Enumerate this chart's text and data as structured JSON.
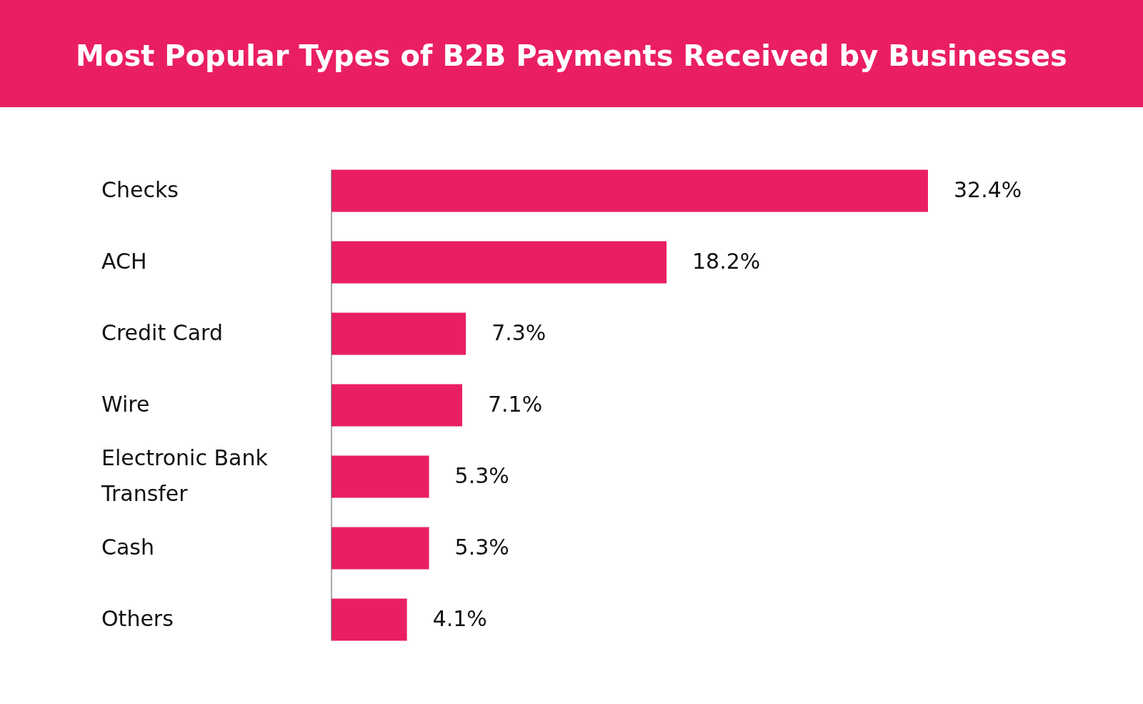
{
  "chart_data": {
    "type": "bar",
    "orientation": "horizontal",
    "title": "Most Popular Types of B2B Payments Received by Businesses",
    "categories": [
      "Checks",
      "ACH",
      "Credit Card",
      "Wire",
      "Electronic Bank Transfer",
      "Cash",
      "Others"
    ],
    "values": [
      32.4,
      18.2,
      7.3,
      7.1,
      5.3,
      5.3,
      4.1
    ],
    "value_labels": [
      "32.4%",
      "18.2%",
      "7.3%",
      "7.1%",
      "5.3%",
      "5.3%",
      "4.1%"
    ],
    "color": "#ea1f63"
  }
}
